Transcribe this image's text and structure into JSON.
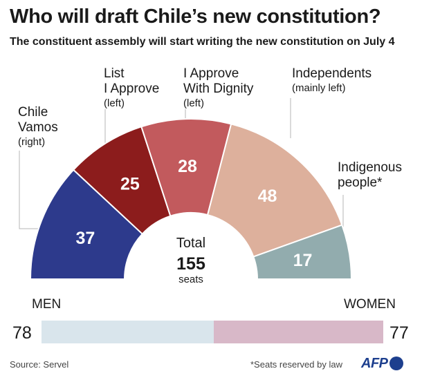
{
  "title": "Who will draft Chile’s new constitution?",
  "subtitle": "The constituent assembly will start writing the new constitution on July 4",
  "chart_data": [
    {
      "type": "pie",
      "variant": "half-donut",
      "groups": [
        {
          "name_lines": [
            "Chile",
            "Vamos"
          ],
          "note": "(right)",
          "value": 37,
          "color": "#2d3a8c"
        },
        {
          "name_lines": [
            "List",
            "I Approve"
          ],
          "note": "(left)",
          "value": 25,
          "color": "#8c1c1c"
        },
        {
          "name_lines": [
            "I Approve",
            "With Dignity"
          ],
          "note": "(left)",
          "value": 28,
          "color": "#c25a5d"
        },
        {
          "name_lines": [
            "Independents"
          ],
          "note": "(mainly left)",
          "value": 48,
          "color": "#ddb09c"
        },
        {
          "name_lines": [
            "Indigenous",
            "people*"
          ],
          "note": "",
          "value": 17,
          "color": "#92acae"
        }
      ],
      "total_label": "Total",
      "total": "155",
      "total_unit": "seats"
    },
    {
      "type": "bar",
      "variant": "stacked-horizontal",
      "categories": [
        "MEN",
        "WOMEN"
      ],
      "values": [
        78,
        77
      ],
      "colors": [
        "#d9e5ec",
        "#d8b8c8"
      ]
    }
  ],
  "footer": {
    "source": "Source: Servel",
    "note": "*Seats reserved by law",
    "logo": "AFP"
  }
}
